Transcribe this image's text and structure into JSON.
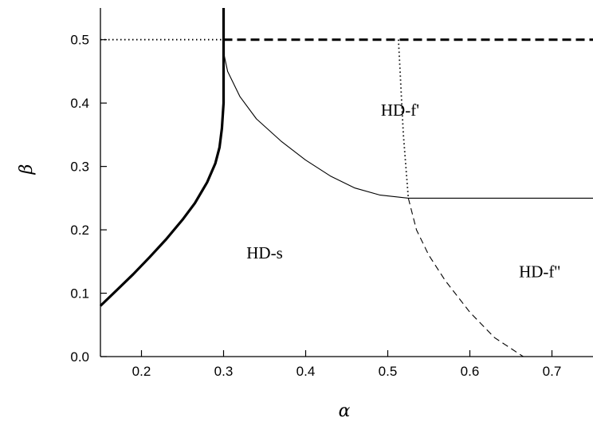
{
  "chart_data": {
    "type": "line",
    "title": "",
    "xlabel": "α",
    "ylabel": "β",
    "xlim": [
      0.15,
      0.75
    ],
    "ylim": [
      0.0,
      0.55
    ],
    "x_ticks": [
      "0.2",
      "0.3",
      "0.4",
      "0.5",
      "0.6",
      "0.7"
    ],
    "y_ticks": [
      "0.0",
      "0.1",
      "0.2",
      "0.3",
      "0.4",
      "0.5"
    ],
    "grid": false,
    "series": [
      {
        "style": "thick-solid",
        "points": [
          [
            0.15,
            0.08
          ],
          [
            0.17,
            0.105
          ],
          [
            0.19,
            0.13
          ],
          [
            0.21,
            0.157
          ],
          [
            0.23,
            0.185
          ],
          [
            0.25,
            0.216
          ],
          [
            0.265,
            0.242
          ],
          [
            0.28,
            0.275
          ],
          [
            0.29,
            0.305
          ],
          [
            0.295,
            0.33
          ],
          [
            0.298,
            0.36
          ],
          [
            0.3,
            0.4
          ],
          [
            0.3,
            0.45
          ],
          [
            0.3,
            0.5
          ],
          [
            0.3,
            0.55
          ]
        ]
      },
      {
        "style": "thin-solid",
        "points": [
          [
            0.3,
            0.48
          ],
          [
            0.305,
            0.45
          ],
          [
            0.32,
            0.41
          ],
          [
            0.34,
            0.375
          ],
          [
            0.37,
            0.34
          ],
          [
            0.4,
            0.31
          ],
          [
            0.43,
            0.285
          ],
          [
            0.46,
            0.266
          ],
          [
            0.49,
            0.255
          ],
          [
            0.525,
            0.25
          ],
          [
            0.75,
            0.25
          ]
        ]
      },
      {
        "style": "dotted",
        "points": [
          [
            0.15,
            0.5
          ],
          [
            0.3,
            0.5
          ]
        ]
      },
      {
        "style": "thick-dashed",
        "points": [
          [
            0.3,
            0.5
          ],
          [
            0.75,
            0.5
          ]
        ]
      },
      {
        "style": "dotted",
        "points": [
          [
            0.513,
            0.5
          ],
          [
            0.515,
            0.45
          ],
          [
            0.517,
            0.4
          ],
          [
            0.519,
            0.35
          ],
          [
            0.522,
            0.3
          ],
          [
            0.525,
            0.25
          ]
        ]
      },
      {
        "style": "dashed",
        "points": [
          [
            0.525,
            0.25
          ],
          [
            0.535,
            0.2
          ],
          [
            0.55,
            0.16
          ],
          [
            0.57,
            0.12
          ],
          [
            0.6,
            0.07
          ],
          [
            0.63,
            0.03
          ],
          [
            0.665,
            0.0
          ]
        ]
      }
    ],
    "annotations": [
      {
        "text": "HD-f'",
        "x": 0.515,
        "y": 0.38
      },
      {
        "text": "HD-s",
        "x": 0.35,
        "y": 0.155
      },
      {
        "text": "HD-f''",
        "x": 0.685,
        "y": 0.125
      }
    ]
  }
}
